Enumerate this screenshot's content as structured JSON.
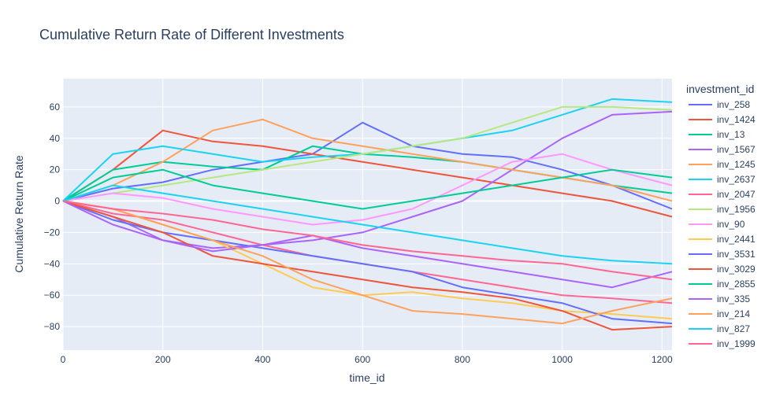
{
  "chart_data": {
    "type": "line",
    "title": "Cumulative Return Rate of Different Investments",
    "xlabel": "time_id",
    "ylabel": "Cumulative Return Rate",
    "xlim": [
      0,
      1220
    ],
    "ylim": [
      -95,
      78
    ],
    "x_ticks": [
      0,
      200,
      400,
      600,
      800,
      1000,
      1200
    ],
    "y_ticks": [
      -80,
      -60,
      -40,
      -20,
      0,
      20,
      40,
      60
    ],
    "x_tick_labels": [
      "0",
      "200",
      "400",
      "600",
      "800",
      "1000",
      "1200"
    ],
    "y_tick_labels": [
      "−80",
      "−60",
      "−40",
      "−20",
      "0",
      "20",
      "40",
      "60"
    ],
    "grid": true,
    "plot_background": "#E5ECF6",
    "legend": {
      "title": "investment_id",
      "placement": "right"
    },
    "x_sample_points": [
      0,
      100,
      200,
      300,
      400,
      500,
      600,
      700,
      800,
      900,
      1000,
      1100,
      1220
    ],
    "series": [
      {
        "name": "inv_258",
        "color": "#636EFA",
        "values": [
          0,
          8,
          12,
          20,
          25,
          30,
          50,
          35,
          30,
          28,
          20,
          10,
          -5
        ]
      },
      {
        "name": "inv_1424",
        "color": "#EF553B",
        "values": [
          0,
          20,
          45,
          38,
          35,
          30,
          25,
          20,
          15,
          10,
          5,
          0,
          -10
        ]
      },
      {
        "name": "inv_13",
        "color": "#00CC96",
        "values": [
          0,
          20,
          25,
          22,
          20,
          35,
          30,
          28,
          25,
          20,
          15,
          10,
          5
        ]
      },
      {
        "name": "inv_1567",
        "color": "#AB63FA",
        "values": [
          0,
          -10,
          -25,
          -30,
          -28,
          -25,
          -20,
          -10,
          0,
          20,
          40,
          55,
          57
        ]
      },
      {
        "name": "inv_1245",
        "color": "#FFA15A",
        "values": [
          0,
          10,
          25,
          45,
          52,
          40,
          35,
          30,
          25,
          20,
          15,
          10,
          0
        ]
      },
      {
        "name": "inv_2637",
        "color": "#19D3F3",
        "values": [
          0,
          30,
          35,
          30,
          25,
          28,
          30,
          35,
          40,
          45,
          55,
          65,
          63
        ]
      },
      {
        "name": "inv_2047",
        "color": "#FF6692",
        "values": [
          0,
          -8,
          -12,
          -20,
          -28,
          -35,
          -40,
          -45,
          -50,
          -55,
          -60,
          -62,
          -65
        ]
      },
      {
        "name": "inv_1956",
        "color": "#B6E880",
        "values": [
          0,
          5,
          10,
          15,
          20,
          25,
          30,
          35,
          40,
          50,
          60,
          60,
          58
        ]
      },
      {
        "name": "inv_90",
        "color": "#FF97FF",
        "values": [
          0,
          5,
          2,
          -5,
          -10,
          -15,
          -12,
          -5,
          10,
          25,
          30,
          20,
          10
        ]
      },
      {
        "name": "inv_2441",
        "color": "#FECB52",
        "values": [
          0,
          -5,
          -15,
          -25,
          -40,
          -55,
          -60,
          -58,
          -62,
          -65,
          -70,
          -72,
          -75
        ]
      },
      {
        "name": "inv_3531",
        "color": "#636EFA",
        "values": [
          0,
          -12,
          -20,
          -25,
          -30,
          -35,
          -40,
          -45,
          -55,
          -60,
          -65,
          -75,
          -78
        ]
      },
      {
        "name": "inv_3029",
        "color": "#EF553B",
        "values": [
          0,
          -10,
          -20,
          -35,
          -40,
          -45,
          -50,
          -55,
          -58,
          -62,
          -70,
          -82,
          -80
        ]
      },
      {
        "name": "inv_2855",
        "color": "#00CC96",
        "values": [
          0,
          15,
          20,
          10,
          5,
          0,
          -5,
          0,
          5,
          10,
          15,
          20,
          15
        ]
      },
      {
        "name": "inv_335",
        "color": "#AB63FA",
        "values": [
          0,
          -15,
          -25,
          -32,
          -28,
          -22,
          -30,
          -35,
          -40,
          -45,
          -50,
          -55,
          -45
        ]
      },
      {
        "name": "inv_214",
        "color": "#FFA15A",
        "values": [
          0,
          -5,
          -15,
          -25,
          -35,
          -50,
          -60,
          -70,
          -72,
          -75,
          -78,
          -70,
          -62
        ]
      },
      {
        "name": "inv_827",
        "color": "#19D3F3",
        "values": [
          0,
          10,
          5,
          0,
          -5,
          -10,
          -15,
          -20,
          -25,
          -30,
          -35,
          -38,
          -40
        ]
      },
      {
        "name": "inv_1999",
        "color": "#FF6692",
        "values": [
          0,
          -5,
          -8,
          -12,
          -18,
          -22,
          -28,
          -32,
          -35,
          -38,
          -40,
          -45,
          -50
        ]
      }
    ]
  }
}
